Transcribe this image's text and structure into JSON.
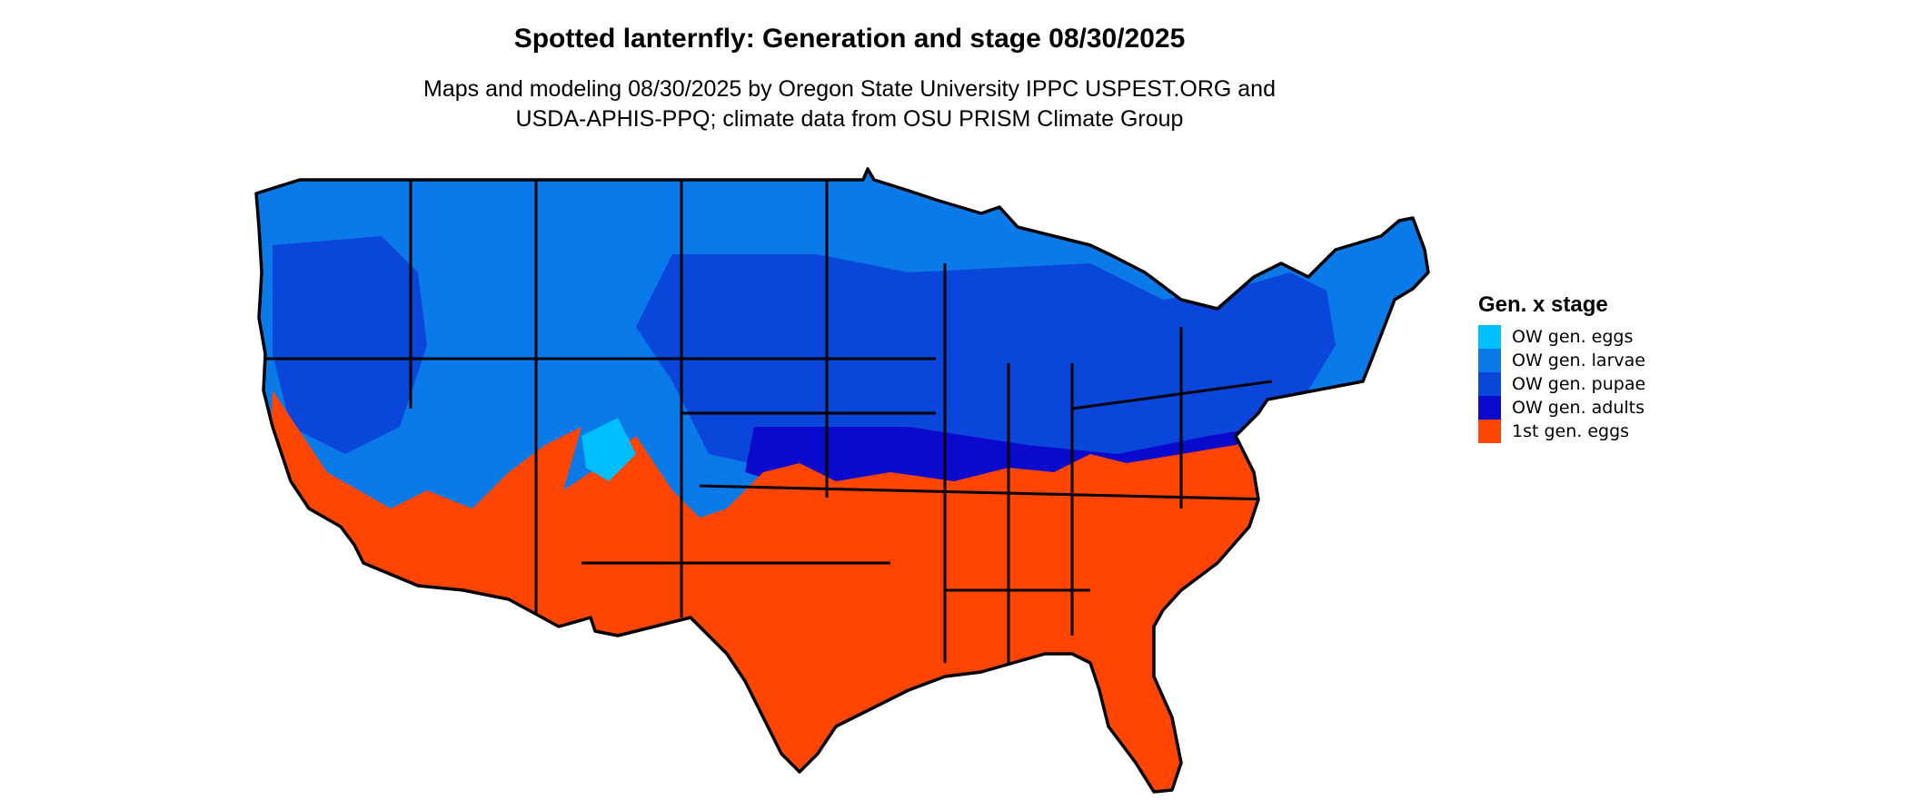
{
  "title": "Spotted lanternfly: Generation and stage 08/30/2025",
  "subtitle_line1": "Maps and modeling 08/30/2025 by Oregon State University IPPC USPEST.ORG and",
  "subtitle_line2": "USDA-APHIS-PPQ; climate data from OSU PRISM Climate Group",
  "legend": {
    "title": "Gen. x stage",
    "items": [
      {
        "label": "OW gen. eggs",
        "color": "#00bfff"
      },
      {
        "label": "OW gen. larvae",
        "color": "#0a7ae8"
      },
      {
        "label": "OW gen. pupae",
        "color": "#0a46d9"
      },
      {
        "label": "OW gen. adults",
        "color": "#0a0acc"
      },
      {
        "label": "1st gen. eggs",
        "color": "#ff4500"
      }
    ]
  }
}
